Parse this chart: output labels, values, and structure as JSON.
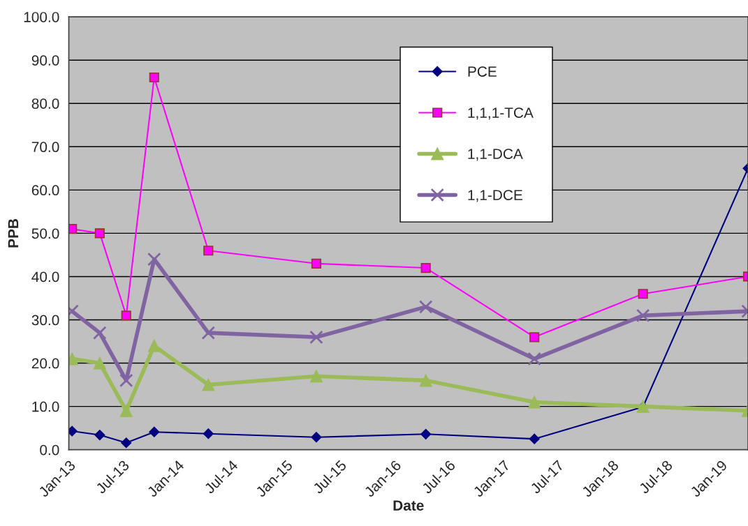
{
  "chart_data": {
    "type": "line",
    "xlabel": "Date",
    "ylabel": "PPB",
    "x": [
      "2013-01-12",
      "2013-04-15",
      "2013-07-13",
      "2013-10-15",
      "2014-04-15",
      "2015-04-13",
      "2016-04-15",
      "2017-04-15",
      "2018-04-15",
      "2019-04-03"
    ],
    "series": [
      {
        "name": "PCE",
        "color": "#000080",
        "marker": "diamond",
        "values": [
          4.3,
          3.4,
          1.6,
          4.1,
          3.7,
          2.9,
          3.6,
          2.5,
          9.9,
          65
        ]
      },
      {
        "name": "1,1,1-TCA",
        "color": "#ff00ff",
        "marker": "square",
        "values": [
          51,
          50,
          31,
          86,
          46,
          43,
          42,
          26,
          36,
          40
        ]
      },
      {
        "name": "1,1-DCA",
        "color": "#9bbb59",
        "marker": "triangle",
        "values": [
          21,
          20,
          9,
          24,
          15,
          17,
          16,
          11,
          10,
          9
        ]
      },
      {
        "name": "1,1-DCE",
        "color": "#8064a2",
        "marker": "cross",
        "values": [
          32,
          27,
          16,
          44,
          27,
          26,
          33,
          21,
          31,
          32
        ]
      }
    ],
    "xlim": [
      "2013-01-01",
      "2019-04-03"
    ],
    "xticks": [
      {
        "value": "2013-01-01",
        "label": "Jan-13"
      },
      {
        "value": "2013-07-01",
        "label": "Jul-13"
      },
      {
        "value": "2014-01-01",
        "label": "Jan-14"
      },
      {
        "value": "2014-07-01",
        "label": "Jul-14"
      },
      {
        "value": "2015-01-01",
        "label": "Jan-15"
      },
      {
        "value": "2015-07-01",
        "label": "Jul-15"
      },
      {
        "value": "2016-01-01",
        "label": "Jan-16"
      },
      {
        "value": "2016-07-01",
        "label": "Jul-16"
      },
      {
        "value": "2017-01-01",
        "label": "Jan-17"
      },
      {
        "value": "2017-07-01",
        "label": "Jul-17"
      },
      {
        "value": "2018-01-01",
        "label": "Jan-18"
      },
      {
        "value": "2018-07-01",
        "label": "Jul-18"
      },
      {
        "value": "2019-01-01",
        "label": "Jan-19"
      }
    ],
    "ylim": [
      0,
      100
    ],
    "yticks": [
      {
        "value": 0,
        "label": "0.0"
      },
      {
        "value": 10,
        "label": "10.0"
      },
      {
        "value": 20,
        "label": "20.0"
      },
      {
        "value": 30,
        "label": "30.0"
      },
      {
        "value": 40,
        "label": "40.0"
      },
      {
        "value": 50,
        "label": "50.0"
      },
      {
        "value": 60,
        "label": "60.0"
      },
      {
        "value": 70,
        "label": "70.0"
      },
      {
        "value": 80,
        "label": "80.0"
      },
      {
        "value": 90,
        "label": "90.0"
      },
      {
        "value": 100,
        "label": "100.0"
      }
    ],
    "grid": "y",
    "legend": "top"
  }
}
